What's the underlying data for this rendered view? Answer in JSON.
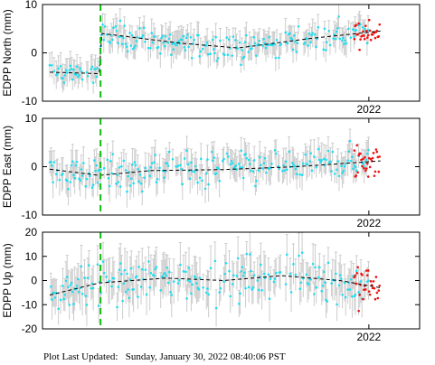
{
  "footer": {
    "label": "Plot Last Updated:",
    "timestamp": "Sunday, January 30, 2022 08:40:06 PST"
  },
  "colors": {
    "data_point": "#22ddee",
    "recent_point": "#ee1111",
    "error_bar": "#cccccc",
    "trend_line": "#000000",
    "event_marker": "#11bb11"
  },
  "chart_data": [
    {
      "type": "scatter",
      "ylabel": "EDPP North (mm)",
      "ylim": [
        -10,
        10
      ],
      "yticks": [
        10,
        0,
        -10
      ],
      "xlim": [
        2019.75,
        2022.35
      ],
      "xticks": [
        2022
      ],
      "xtick_labels": [
        "2022"
      ],
      "event_line_x": 2020.15,
      "series": [
        {
          "role": "daily-position-pre-event",
          "color": "#22ddee",
          "x_range": [
            2019.8,
            2020.15
          ],
          "mean": -4,
          "spread": 1.5,
          "error": 2.5
        },
        {
          "role": "daily-position",
          "color": "#22ddee",
          "x_range": [
            2020.15,
            2022.0
          ],
          "spread": 1.5,
          "error": 2.5
        },
        {
          "role": "recent-position",
          "color": "#ee1111",
          "x_range": [
            2021.9,
            2022.08
          ],
          "spread": 1.5
        },
        {
          "role": "trend",
          "color": "#000000",
          "points": [
            [
              2019.8,
              -4
            ],
            [
              2020.14,
              -4.3
            ],
            [
              2020.16,
              4
            ],
            [
              2020.7,
              2
            ],
            [
              2021.1,
              1
            ],
            [
              2021.6,
              3
            ],
            [
              2022.08,
              4.5
            ]
          ]
        }
      ]
    },
    {
      "type": "scatter",
      "ylabel": "EDPP East (mm)",
      "ylim": [
        -10,
        10
      ],
      "yticks": [
        10,
        0,
        -10
      ],
      "xlim": [
        2019.75,
        2022.35
      ],
      "xticks": [
        2022
      ],
      "xtick_labels": [
        "2022"
      ],
      "event_line_x": 2020.15,
      "series": [
        {
          "role": "daily-position",
          "color": "#22ddee",
          "x_range": [
            2019.8,
            2022.0
          ],
          "spread": 2,
          "error": 3
        },
        {
          "role": "recent-position",
          "color": "#ee1111",
          "x_range": [
            2021.9,
            2022.08
          ],
          "spread": 2
        },
        {
          "role": "trend",
          "color": "#000000",
          "points": [
            [
              2019.8,
              -0.5
            ],
            [
              2020.14,
              -1.8
            ],
            [
              2020.5,
              -0.8
            ],
            [
              2021.0,
              -0.6
            ],
            [
              2021.5,
              0
            ],
            [
              2022.08,
              1.2
            ]
          ]
        }
      ]
    },
    {
      "type": "scatter",
      "ylabel": "EDPP Up (mm)",
      "ylim": [
        -20,
        20
      ],
      "yticks": [
        20,
        10,
        0,
        -10,
        -20
      ],
      "xlim": [
        2019.75,
        2022.35
      ],
      "xticks": [
        2022
      ],
      "xtick_labels": [
        "2022"
      ],
      "event_line_x": 2020.15,
      "series": [
        {
          "role": "daily-position",
          "color": "#22ddee",
          "x_range": [
            2019.8,
            2022.0
          ],
          "spread": 5,
          "error": 8
        },
        {
          "role": "recent-position",
          "color": "#ee1111",
          "x_range": [
            2021.9,
            2022.08
          ],
          "spread": 5
        },
        {
          "role": "trend",
          "color": "#000000",
          "points": [
            [
              2019.8,
              -6
            ],
            [
              2020.14,
              -1
            ],
            [
              2020.6,
              1
            ],
            [
              2021.0,
              0
            ],
            [
              2021.4,
              2
            ],
            [
              2021.8,
              0
            ],
            [
              2022.08,
              -3
            ]
          ]
        }
      ]
    }
  ]
}
